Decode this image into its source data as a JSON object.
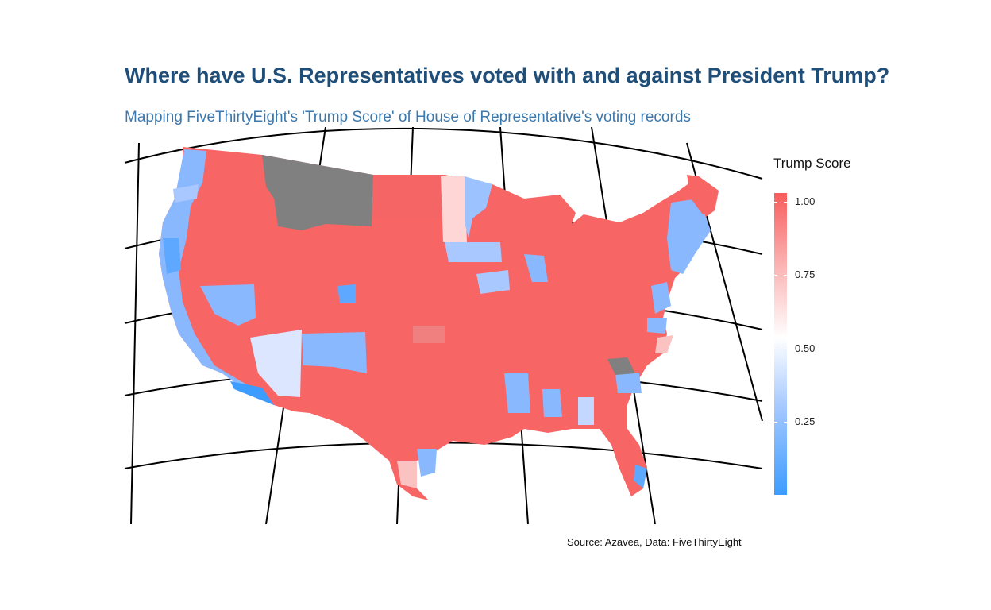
{
  "title": "Where have U.S. Representatives voted with and against President Trump?",
  "subtitle": "Mapping FiveThirtyEight's 'Trump Score' of House of Representative's voting records",
  "caption": "Source: Azavea, Data: FiveThirtyEight",
  "legend": {
    "title": "Trump Score",
    "labels": [
      "1.00",
      "0.75",
      "0.50",
      "0.25"
    ]
  },
  "colors": {
    "high": "#f85c5c",
    "mid": "#ffffff",
    "low": "#3d9cff",
    "na": "#808080"
  },
  "map_regions": [
    {
      "name": "northwest",
      "score": 0.95
    },
    {
      "name": "pacific-coast",
      "score": 0.2
    },
    {
      "name": "montana",
      "score": null
    },
    {
      "name": "north-dakota",
      "score": 0.97
    },
    {
      "name": "minnesota",
      "score": 0.3
    },
    {
      "name": "new-mexico",
      "score": 0.3
    },
    {
      "name": "arizona-phoenix",
      "score": 0.45
    },
    {
      "name": "texas",
      "score": 0.97
    },
    {
      "name": "florida",
      "score": 0.95
    },
    {
      "name": "northeast",
      "score": 0.25
    },
    {
      "name": "north-carolina-district",
      "score": null
    }
  ]
}
